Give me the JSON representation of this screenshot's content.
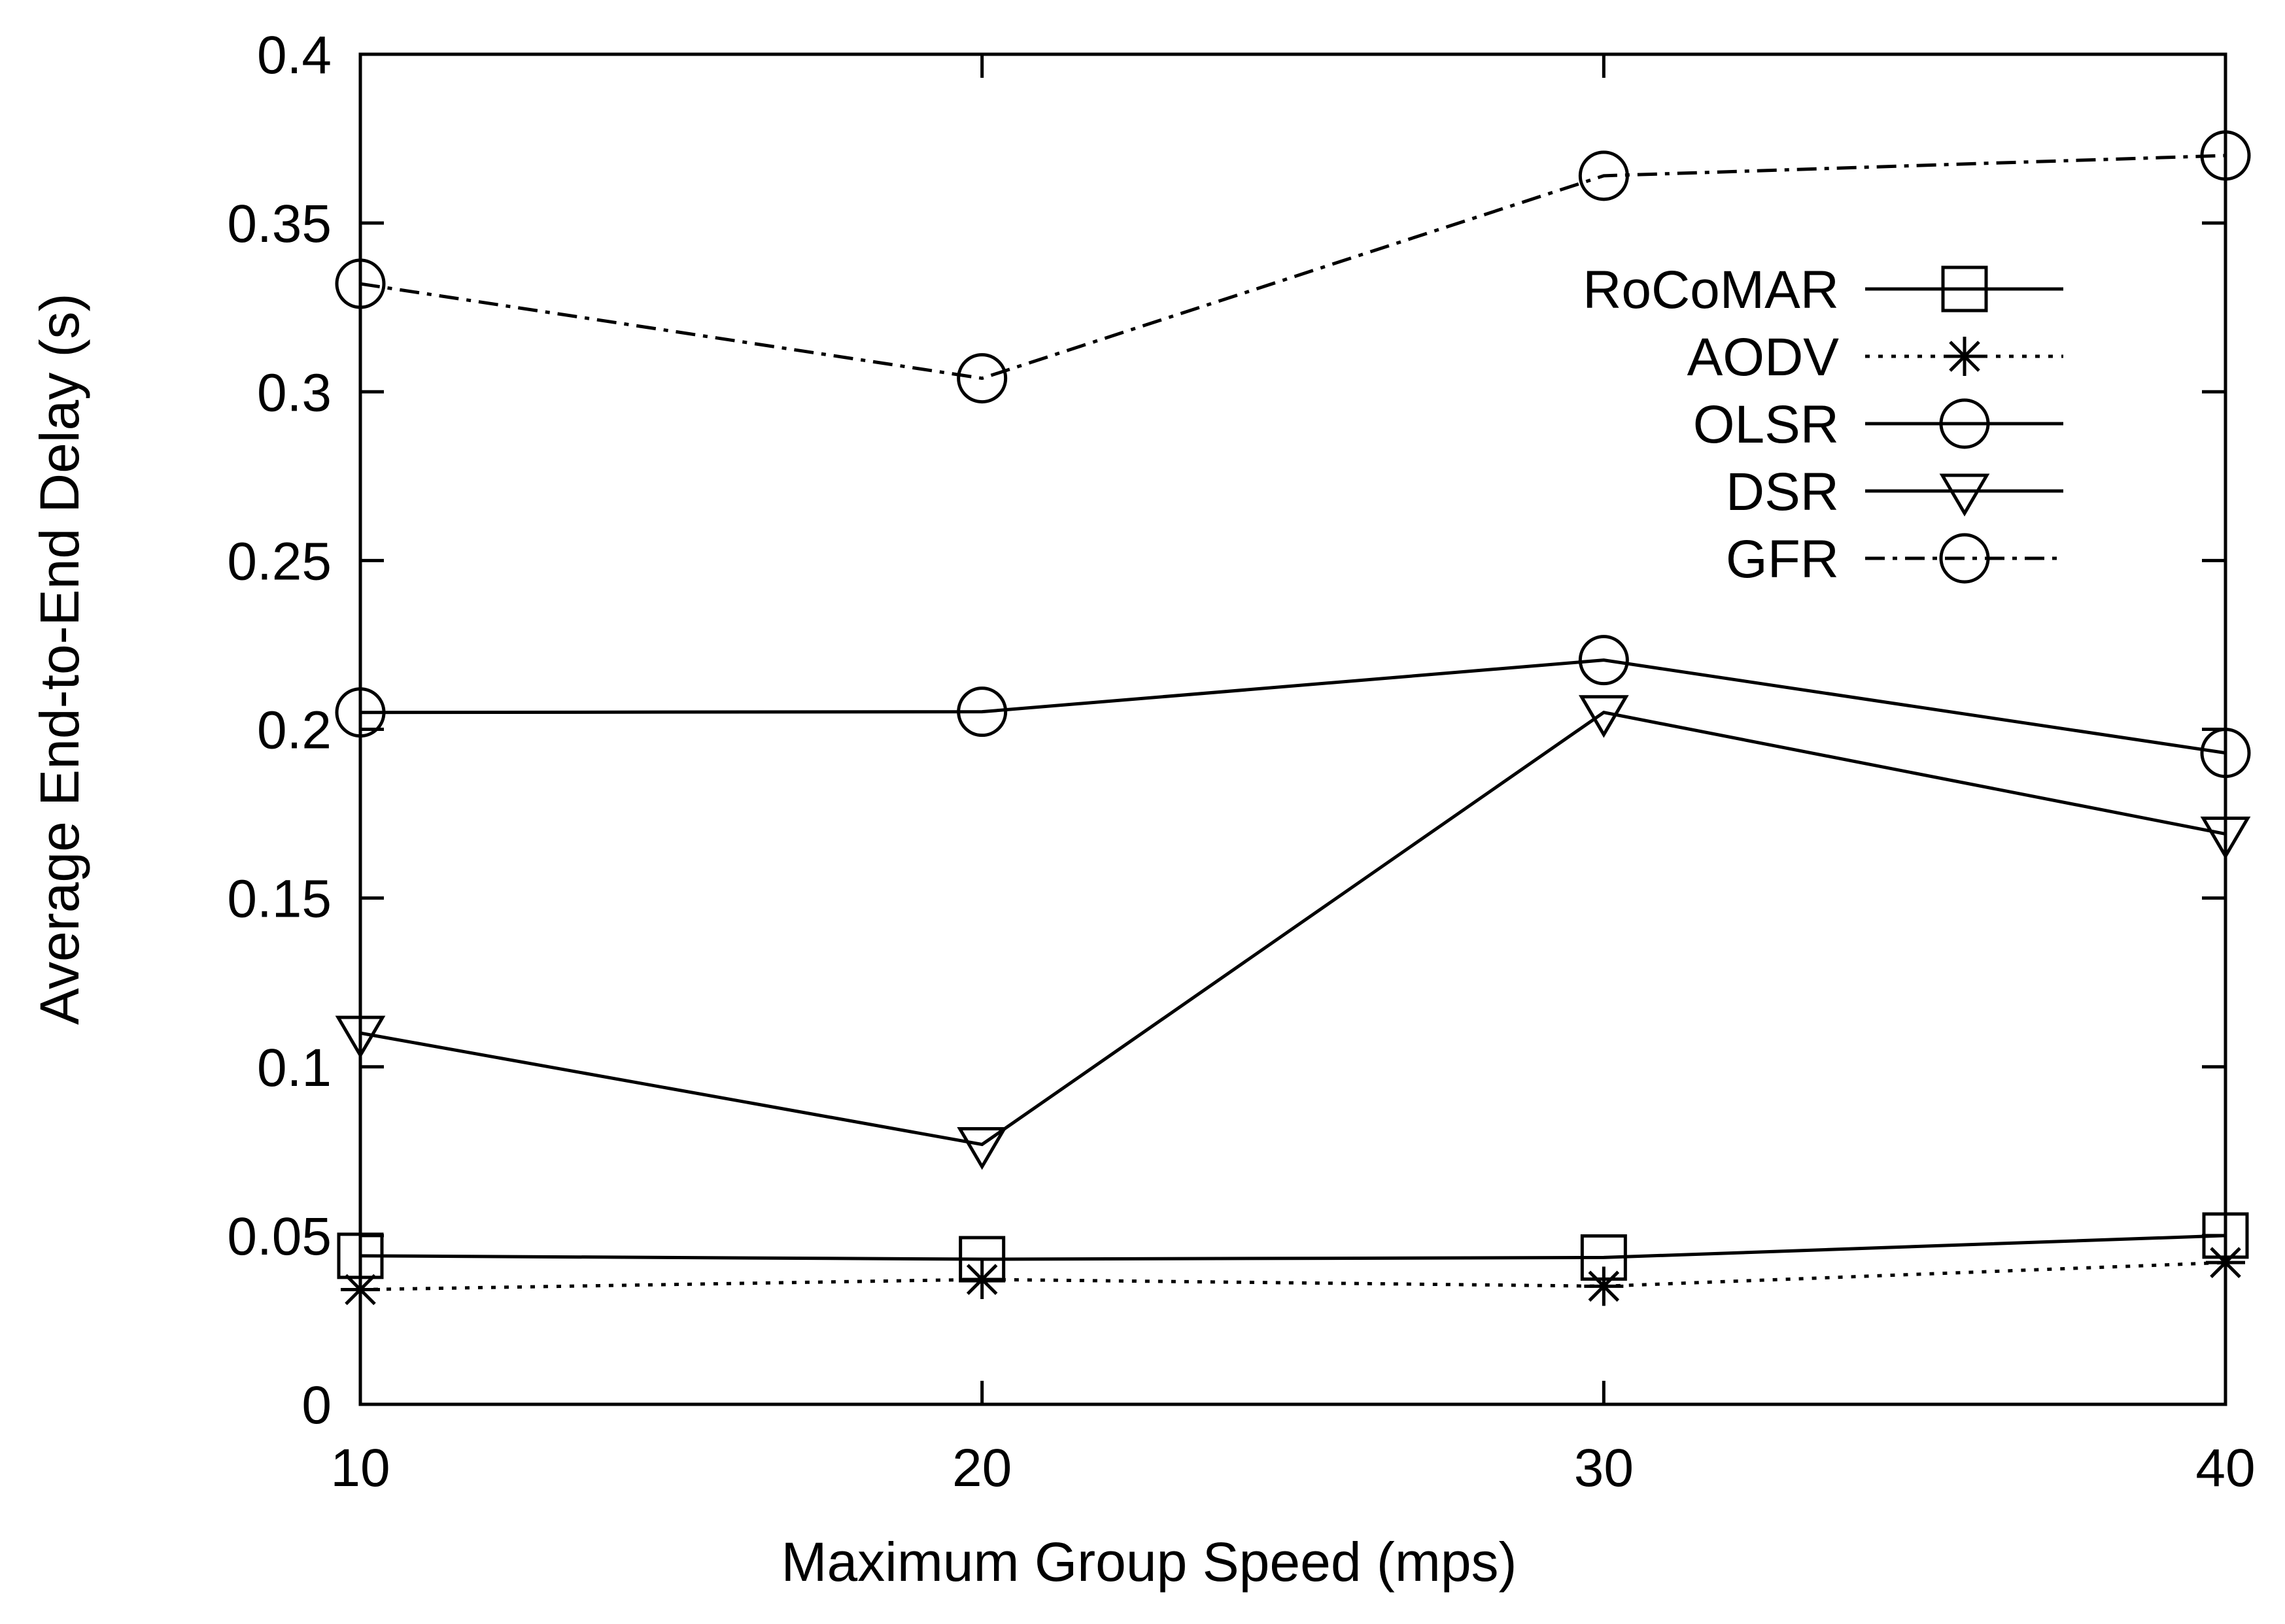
{
  "chart_data": {
    "type": "line",
    "title": "",
    "xlabel": "Maximum Group Speed (mps)",
    "ylabel": "Average End-to-End Delay (s)",
    "x": [
      10,
      20,
      30,
      40
    ],
    "xlim": [
      10,
      40
    ],
    "ylim": [
      0,
      0.4
    ],
    "xticks": [
      "10",
      "20",
      "30",
      "40"
    ],
    "yticks": [
      "0",
      "0.05",
      "0.1",
      "0.15",
      "0.2",
      "0.25",
      "0.3",
      "0.35",
      "0.4"
    ],
    "grid": false,
    "legend_position": "top-right",
    "series": [
      {
        "name": "RoCoMAR",
        "marker": "square",
        "dash": "solid",
        "values": [
          0.044,
          0.043,
          0.0435,
          0.05
        ]
      },
      {
        "name": "AODV",
        "marker": "asterisk",
        "dash": "dotted",
        "values": [
          0.034,
          0.037,
          0.035,
          0.042
        ]
      },
      {
        "name": "OLSR",
        "marker": "circle",
        "dash": "solid",
        "values": [
          0.205,
          0.2052,
          0.2205,
          0.193
        ]
      },
      {
        "name": "DSR",
        "marker": "triangle-down",
        "dash": "solid",
        "values": [
          0.11,
          0.077,
          0.205,
          0.169
        ]
      },
      {
        "name": "GFR",
        "marker": "circle",
        "dash": "dash-dot",
        "values": [
          0.332,
          0.304,
          0.364,
          0.37
        ]
      }
    ]
  }
}
